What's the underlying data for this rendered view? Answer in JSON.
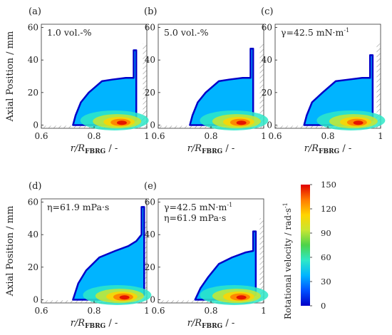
{
  "figure": {
    "y_axis_label": "Axial Position / mm",
    "x_axis_label": "r/R",
    "x_axis_label_sub": "FBRG",
    "x_axis_label_suffix": " / -",
    "colorbar": {
      "label": "Rotational velocity / rad·s",
      "label_sup": "-1",
      "min": 0,
      "max": 150,
      "ticks": [
        "150",
        "120",
        "90",
        "60",
        "30",
        "0"
      ],
      "stops": [
        "#0000c8",
        "#0050ff",
        "#00b4ff",
        "#2ee8c8",
        "#4cd34a",
        "#c8e632",
        "#ffd400",
        "#ff7a00",
        "#e00000"
      ]
    }
  },
  "chart_data": [
    {
      "panel": "(a)",
      "annotation": [
        "1.0 vol.-%"
      ],
      "type": "heatmap",
      "xlim": [
        0.6,
        1.0
      ],
      "ylim": [
        -2,
        62
      ],
      "x_ticks": [
        "0.6",
        "0.8",
        "1"
      ],
      "y_ticks": [
        "0",
        "20",
        "40",
        "60"
      ],
      "fluid_region": [
        [
          0.72,
          0
        ],
        [
          0.91,
          0
        ],
        [
          0.96,
          3
        ],
        [
          0.96,
          46
        ],
        [
          0.95,
          46
        ],
        [
          0.95,
          29
        ],
        [
          0.92,
          29
        ],
        [
          0.87,
          28
        ],
        [
          0.83,
          27
        ],
        [
          0.78,
          20
        ],
        [
          0.75,
          14
        ],
        [
          0.73,
          6
        ]
      ],
      "hotspot": {
        "r": 0.91,
        "axial": 1,
        "value": 150
      }
    },
    {
      "panel": "(b)",
      "annotation": [
        "5.0 vol.-%"
      ],
      "type": "heatmap",
      "xlim": [
        0.6,
        1.0
      ],
      "ylim": [
        -2,
        62
      ],
      "x_ticks": [
        "0.6",
        "0.8",
        "1"
      ],
      "y_ticks": [
        "0",
        "20",
        "40",
        "60"
      ],
      "fluid_region": [
        [
          0.72,
          0
        ],
        [
          0.92,
          0
        ],
        [
          0.96,
          3
        ],
        [
          0.96,
          47
        ],
        [
          0.95,
          47
        ],
        [
          0.95,
          29
        ],
        [
          0.92,
          29
        ],
        [
          0.87,
          28
        ],
        [
          0.83,
          27
        ],
        [
          0.78,
          20
        ],
        [
          0.75,
          14
        ],
        [
          0.73,
          6
        ]
      ],
      "hotspot": {
        "r": 0.92,
        "axial": 1,
        "value": 150
      }
    },
    {
      "panel": "(c)",
      "annotation": [
        "γ=42.5 mN·m"
      ],
      "annotation_sup": "-1",
      "type": "heatmap",
      "xlim": [
        0.6,
        1.0
      ],
      "ylim": [
        -2,
        62
      ],
      "x_ticks": [
        "0.6",
        "0.8",
        "1"
      ],
      "y_ticks": [
        "0",
        "20",
        "40",
        "60"
      ],
      "fluid_region": [
        [
          0.71,
          0
        ],
        [
          0.93,
          0
        ],
        [
          0.97,
          3
        ],
        [
          0.97,
          43
        ],
        [
          0.96,
          43
        ],
        [
          0.96,
          29
        ],
        [
          0.93,
          29
        ],
        [
          0.88,
          28
        ],
        [
          0.83,
          27
        ],
        [
          0.78,
          20
        ],
        [
          0.74,
          14
        ],
        [
          0.72,
          6
        ]
      ],
      "hotspot": {
        "r": 0.92,
        "axial": 1,
        "value": 150
      }
    },
    {
      "panel": "(d)",
      "annotation": [
        "η=61.9 mPa·s"
      ],
      "type": "heatmap",
      "xlim": [
        0.6,
        1.0
      ],
      "ylim": [
        -2,
        62
      ],
      "x_ticks": [
        "0.6",
        "0.8",
        "1"
      ],
      "y_ticks": [
        "0",
        "20",
        "40",
        "60"
      ],
      "fluid_region": [
        [
          0.72,
          0
        ],
        [
          0.94,
          0
        ],
        [
          0.99,
          3
        ],
        [
          0.99,
          57
        ],
        [
          0.98,
          57
        ],
        [
          0.98,
          40
        ],
        [
          0.96,
          36
        ],
        [
          0.93,
          33
        ],
        [
          0.88,
          30
        ],
        [
          0.82,
          26
        ],
        [
          0.77,
          18
        ],
        [
          0.74,
          10
        ]
      ],
      "hotspot": {
        "r": 0.92,
        "axial": 1,
        "value": 150
      }
    },
    {
      "panel": "(e)",
      "annotation": [
        "γ=42.5 mN·m",
        "η=61.9 mPa·s"
      ],
      "annotation_sup": "-1",
      "type": "heatmap",
      "xlim": [
        0.6,
        1.0
      ],
      "ylim": [
        -2,
        62
      ],
      "x_ticks": [
        "0.6",
        "0.8",
        "1"
      ],
      "y_ticks": [
        "0",
        "20",
        "40",
        "60"
      ],
      "fluid_region": [
        [
          0.74,
          0
        ],
        [
          0.93,
          0
        ],
        [
          0.97,
          3
        ],
        [
          0.97,
          42
        ],
        [
          0.96,
          42
        ],
        [
          0.96,
          30
        ],
        [
          0.93,
          29
        ],
        [
          0.88,
          26
        ],
        [
          0.83,
          22
        ],
        [
          0.79,
          14
        ],
        [
          0.76,
          7
        ]
      ],
      "hotspot": {
        "r": 0.92,
        "axial": 1,
        "value": 150
      }
    }
  ]
}
